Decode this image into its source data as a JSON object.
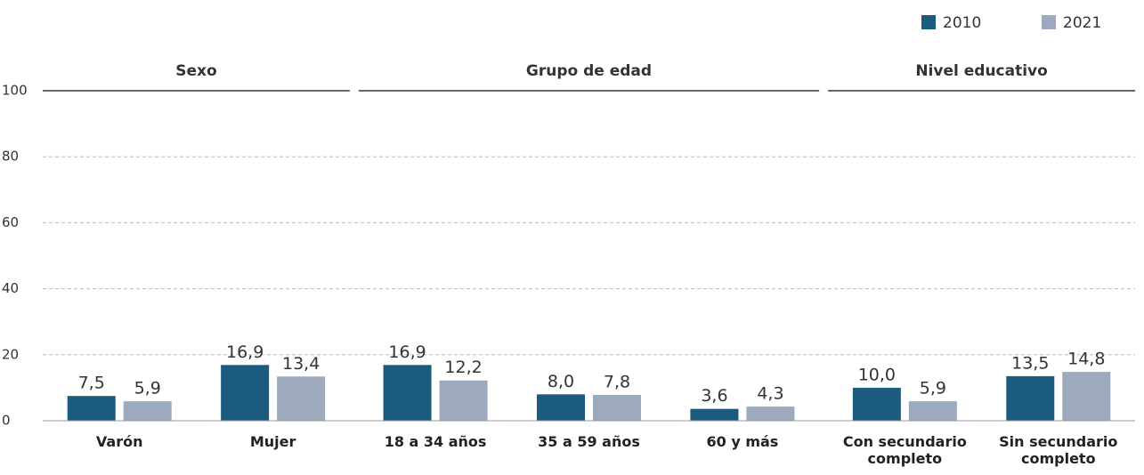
{
  "chart_data": {
    "type": "bar",
    "groups": [
      {
        "label": "Sexo",
        "categories": [
          "Varón",
          "Mujer"
        ]
      },
      {
        "label": "Grupo de edad",
        "categories": [
          "18 a 34 años",
          "35 a 59 años",
          "60 y más"
        ]
      },
      {
        "label": "Nivel educativo",
        "categories": [
          "Con secundario completo",
          "Sin secundario completo"
        ]
      }
    ],
    "series": [
      {
        "name": "2010",
        "color": "#1b5b7e",
        "values": [
          7.5,
          16.9,
          16.9,
          8.0,
          3.6,
          10.0,
          13.5
        ],
        "value_labels": [
          "7,5",
          "16,9",
          "16,9",
          "8,0",
          "3,6",
          "10,0",
          "13,5"
        ]
      },
      {
        "name": "2021",
        "color": "#9daabd",
        "values": [
          5.9,
          13.4,
          12.2,
          7.8,
          4.3,
          5.9,
          14.8
        ],
        "value_labels": [
          "5,9",
          "13,4",
          "12,2",
          "7,8",
          "4,3",
          "5,9",
          "14,8"
        ]
      }
    ],
    "ylim": [
      0,
      100
    ],
    "yticks": [
      0,
      20,
      40,
      60,
      80,
      100
    ],
    "grid": true,
    "legend": "top-right"
  }
}
